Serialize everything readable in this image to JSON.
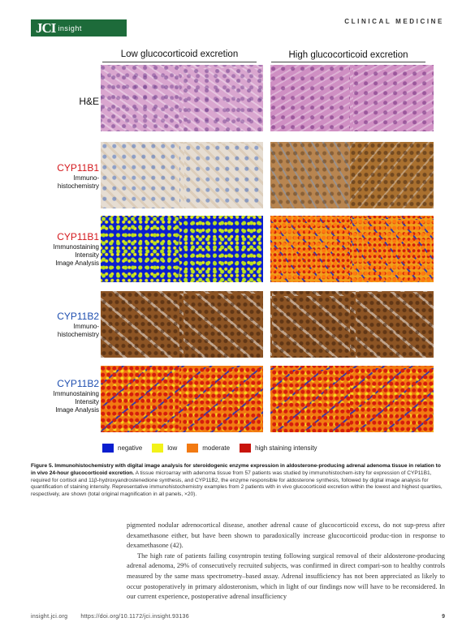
{
  "header": {
    "logo_jci": "JCI",
    "logo_insight": "insight",
    "section": "CLINICAL MEDICINE"
  },
  "figure": {
    "col_low": "Low glucocorticoid excretion",
    "col_high": "High glucocorticoid excretion",
    "rows": [
      {
        "title": "H&E",
        "sub": []
      },
      {
        "title": "CYP11B1",
        "sub": [
          "Immuno-",
          "histochemistry"
        ]
      },
      {
        "title": "CYP11B1",
        "sub": [
          "Immunostaining",
          "Intensity",
          "Image Analysis"
        ]
      },
      {
        "title": "CYP11B2",
        "sub": [
          "Immuno-",
          "histochemistry"
        ]
      },
      {
        "title": "CYP11B2",
        "sub": [
          "Immunostaining",
          "Intensity",
          "Image Analysis"
        ]
      }
    ],
    "legend": [
      {
        "label": "negative",
        "color": "#0a1ecf"
      },
      {
        "label": "low",
        "color": "#f2f21a"
      },
      {
        "label": "moderate",
        "color": "#f27a12"
      },
      {
        "label": "high staining intensity",
        "color": "#c8140c"
      }
    ],
    "title_colors": {
      "cyp11b1": "#d4191d",
      "cyp11b2": "#1f4fb0"
    }
  },
  "caption": {
    "bold": "Figure 5. Immunohistochemistry with digital image analysis for steroidogenic enzyme expression in aldosterone-producing adrenal adenoma tissue in relation to in vivo 24-hour glucocorticoid excretion.",
    "text": " A tissue microarray with adenoma tissue from 57 patients was studied by immunohistochem-istry for expression of CYP11B1, required for cortisol and 11β-hydroxyandrostenedione synthesis, and CYP11B2, the enzyme responsible for aldosterone synthesis, followed by digital image analysis for quantification of staining intensity. Representative immunohistochemistry examples from 2 patients with in vivo glucocorticoid excretion within the lowest and highest quartiles, respectively, are shown (total original magnification in all panels, ×20)."
  },
  "body": {
    "p1": "pigmented nodular adrenocortical disease, another adrenal cause of glucocorticoid excess, do not sup-press after dexamethasone either, but have been shown to paradoxically increase glucocorticoid produc-tion in response to dexamethasone (42).",
    "p2": "The high rate of patients failing cosyntropin testing following surgical removal of their aldosterone-producing adrenal adenoma, 29% of consecutively recruited subjects, was confirmed in direct compari-son to healthy controls measured by the same mass spectrometry–based assay. Adrenal insufficiency has not been appreciated as likely to occur postoperatively in primary aldosteronism, which in light of our findings now will have to be reconsidered. In our current experience, postoperative adrenal insufficiency"
  },
  "footer": {
    "site": "insight.jci.org",
    "doi": "https://doi.org/10.1172/jci.insight.93136",
    "page": "9"
  }
}
